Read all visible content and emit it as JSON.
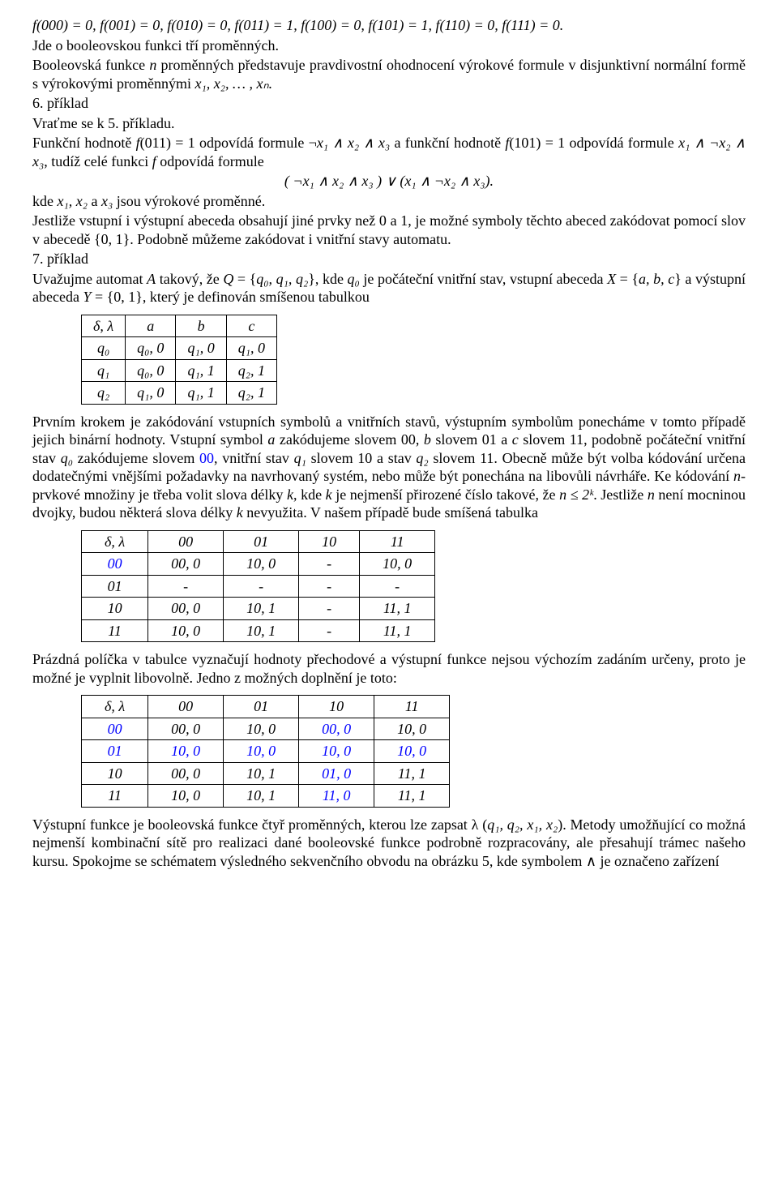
{
  "p1": "f(000) = 0, f(001) = 0, f(010) = 0, f(011) = 1, f(100) = 0,  f(101) = 1, f(110) = 0, f(111) = 0.",
  "p2": "Jde o booleovskou funkci tří proměnných.",
  "p3a": "Booleovská funkce ",
  "p3b": "n",
  "p3c": " proměnných představuje pravdivostní ohodnocení výrokové formule v disjunktivní normální formě s výrokovými proměnnými ",
  "p3d": "x₁, x₂, … , xₙ.",
  "p4": "6. příklad",
  "p5": "Vraťme se k 5. příkladu.",
  "p6a": "Funkční hodnotě ",
  "p6b": "f",
  "p6c": "(011) = 1 odpovídá formule ¬",
  "p6d": "x₁ ∧ x₂ ∧ x₃",
  "p6e": " a funkční hodnotě ",
  "p6f": "f",
  "p6g": "(101) = 1 odpovídá formule ",
  "p6h": "x₁ ∧ ¬x₂ ∧ x₃",
  "p6i": ", tudíž celé funkci ",
  "p6j": "f",
  "p6k": " odpovídá formule",
  "formula1": "( ¬x₁ ∧ x₂ ∧ x₃ ) ∨ (x₁ ∧ ¬x₂ ∧ x₃).",
  "p7a": "kde ",
  "p7b": "x₁, x₂",
  "p7c": " a  ",
  "p7d": "x₃",
  "p7e": " jsou výrokové proměnné.",
  "p8": "Jestliže vstupní i výstupní abeceda obsahují jiné prvky než 0 a 1, je možné symboly těchto abeced zakódovat pomocí slov v abecedě {0, 1}. Podobně můžeme zakódovat i vnitřní stavy automatu.",
  "p9": "7. příklad",
  "p10a": "Uvažujme automat ",
  "p10b": "A",
  "p10c": " takový, že ",
  "p10d": "Q",
  "p10e": " = {",
  "p10f": "q₀, q₁, q₂",
  "p10g": "}, kde ",
  "p10h": "q₀",
  "p10i": "  je počáteční vnitřní stav,  vstupní abeceda ",
  "p10j": "X",
  "p10k": " = {",
  "p10l": "a, b, c",
  "p10m": "} a výstupní abeceda ",
  "p10n": "Y",
  "p10o": " = {0, 1}, který je definován smíšenou tabulkou",
  "table1": {
    "header": [
      "δ, λ",
      "a",
      "b",
      "c"
    ],
    "rows": [
      [
        "q₀",
        "q₀, 0",
        "q₁, 0",
        "q₁, 0"
      ],
      [
        "q₁",
        "q₀, 0",
        "q₁, 1",
        "q₂, 1"
      ],
      [
        "q₂",
        "q₁, 0",
        "q₁, 1",
        "q₂, 1"
      ]
    ]
  },
  "p11a": "Prvním krokem je zakódování vstupních symbolů a vnitřních stavů, výstupním symbolům ponecháme v tomto případě jejich binární hodnoty. Vstupní symbol ",
  "p11b": "a",
  "p11c": " zakódujeme slovem 00, ",
  "p11d": "b",
  "p11e": " slovem 01 a ",
  "p11f": "c",
  "p11g": " slovem 11, podobně počáteční vnitřní stav ",
  "p11h": "q₀",
  "p11i": " zakódujeme slovem ",
  "p11j": "00",
  "p11k": ", vnitřní stav ",
  "p11l": "q₁",
  "p11m": " slovem 10 a stav ",
  "p11n": "q₂",
  "p11o": " slovem 11. Obecně může být volba kódování určena dodatečnými vnějšími požadavky na navrhovaný  systém, nebo může být ponechána na libovůli návrháře. Ke kódování ",
  "p11p": "n",
  "p11q": "-prvkové množiny je třeba volit slova délky ",
  "p11r": "k",
  "p11s": ", kde ",
  "p11t": "k",
  "p11u": " je nejmenší přirozené číslo takové, že ",
  "p11v": "n ≤ 2ᵏ",
  "p11w": ".  Jestliže ",
  "p11x": "n",
  "p11y": " není mocninou dvojky, budou některá slova délky ",
  "p11z": "k",
  "p11aa": " nevyužita. V našem případě bude smíšená tabulka",
  "table2": {
    "header": [
      "δ, λ",
      "00",
      "01",
      "10",
      "11"
    ],
    "rows": [
      [
        "00",
        "00, 0",
        "10, 0",
        "-",
        "10, 0"
      ],
      [
        "01",
        "-",
        "-",
        "-",
        "-"
      ],
      [
        "10",
        "00, 0",
        "10, 1",
        "-",
        "11, 1"
      ],
      [
        "11",
        "10, 0",
        "10, 1",
        "-",
        "11, 1"
      ]
    ]
  },
  "p12": "Prázdná políčka v tabulce vyznačují hodnoty přechodové a výstupní funkce nejsou výchozím zadáním určeny, proto je možné je vyplnit libovolně. Jedno z možných doplnění je toto:",
  "table3": {
    "header": [
      "δ, λ",
      "00",
      "01",
      "10",
      "11"
    ],
    "rows": [
      [
        "00",
        "00, 0",
        "10, 0",
        "00, 0",
        "10, 0"
      ],
      [
        "01",
        "10, 0",
        "10, 0",
        "10, 0",
        "10, 0"
      ],
      [
        "10",
        "00, 0",
        "10, 1",
        "01, 0",
        "11, 1"
      ],
      [
        "11",
        "10, 0",
        "10, 1",
        "11, 0",
        "11, 1"
      ]
    ]
  },
  "p13a": "Výstupní funkce je booleovská funkce čtyř proměnných, kterou lze zapsat λ (",
  "p13b": "q₁, q₂, x₁, x₂",
  "p13c": "). Metody umožňující co možná nejmenší kombinační sítě pro realizaci dané booleovské funkce podrobně rozpracovány, ale přesahují trámec našeho kursu. Spokojme se schématem výsledného sekvenčního obvodu na obrázku 5, kde symbolem    ∧ je označeno zařízení"
}
